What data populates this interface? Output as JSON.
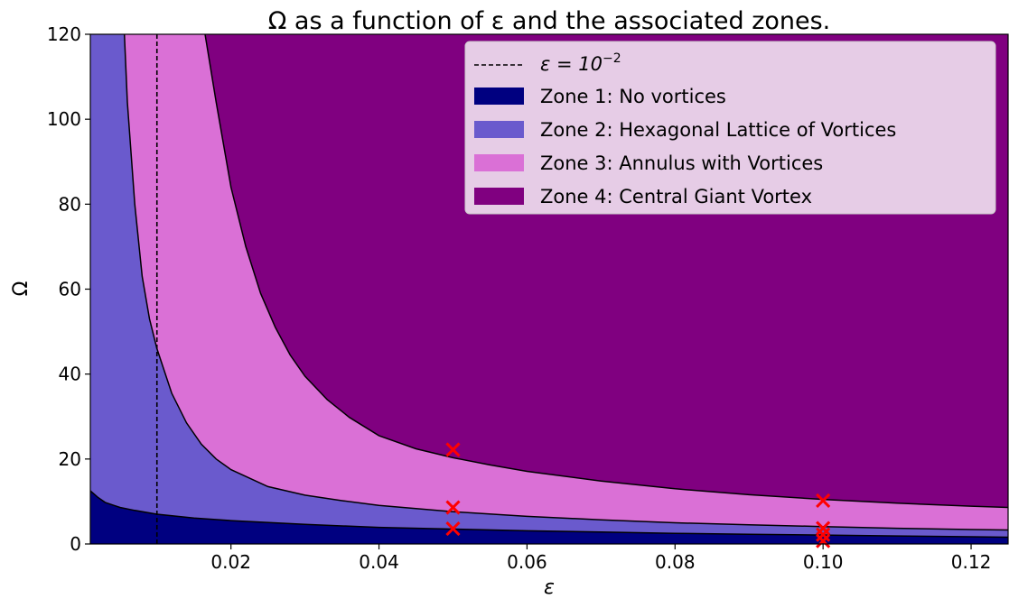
{
  "chart_data": {
    "type": "area",
    "title": "Ω as a function of ε and the associated zones.",
    "xlabel": "ε",
    "ylabel": "Ω",
    "xlim": [
      0.001,
      0.125
    ],
    "ylim": [
      0,
      120
    ],
    "x_ticks": [
      0.02,
      0.04,
      0.06,
      0.08,
      0.1,
      0.12
    ],
    "x_tick_labels": [
      "0.02",
      "0.04",
      "0.06",
      "0.08",
      "0.10",
      "0.12"
    ],
    "y_ticks": [
      0,
      20,
      40,
      60,
      80,
      100,
      120
    ],
    "y_tick_labels": [
      "0",
      "20",
      "40",
      "60",
      "80",
      "100",
      "120"
    ],
    "grid": false,
    "legend_position": "top-right",
    "vertical_line": {
      "x": 0.01,
      "label": "ε = 10",
      "label_exponent": "−2",
      "style": "dashed",
      "color": "#000000"
    },
    "zones": [
      {
        "name": "Zone 1: No vortices",
        "color": "#000080"
      },
      {
        "name": "Zone 2: Hexagonal Lattice of Vortices",
        "color": "#6a5acd"
      },
      {
        "name": "Zone 3: Annulus with Vortices",
        "color": "#da70d6"
      },
      {
        "name": "Zone 4: Central Giant Vortex",
        "color": "#800080"
      }
    ],
    "boundaries": [
      {
        "between": "Zone 1 / Zone 2",
        "x": [
          0.001,
          0.002,
          0.003,
          0.005,
          0.007,
          0.01,
          0.015,
          0.02,
          0.03,
          0.04,
          0.05,
          0.06,
          0.07,
          0.08,
          0.09,
          0.1,
          0.11,
          0.12,
          0.125
        ],
        "y": [
          12.5,
          11.0,
          9.8,
          8.6,
          7.9,
          7.0,
          6.1,
          5.5,
          4.6,
          3.9,
          3.5,
          3.1,
          2.8,
          2.5,
          2.3,
          2.1,
          1.9,
          1.7,
          1.6
        ]
      },
      {
        "between": "Zone 2 / Zone 3",
        "x": [
          0.0056,
          0.006,
          0.007,
          0.008,
          0.009,
          0.01,
          0.012,
          0.014,
          0.016,
          0.018,
          0.02,
          0.025,
          0.03,
          0.035,
          0.04,
          0.05,
          0.06,
          0.07,
          0.08,
          0.09,
          0.1,
          0.11,
          0.12,
          0.125
        ],
        "y": [
          120,
          104,
          80,
          63,
          53,
          46,
          35.5,
          28.5,
          23.5,
          20,
          17.5,
          13.5,
          11.5,
          10.2,
          9.1,
          7.6,
          6.5,
          5.7,
          5.0,
          4.5,
          4.1,
          3.7,
          3.4,
          3.3
        ]
      },
      {
        "between": "Zone 3 / Zone 4",
        "x": [
          0.0165,
          0.018,
          0.02,
          0.022,
          0.024,
          0.026,
          0.028,
          0.03,
          0.033,
          0.036,
          0.04,
          0.045,
          0.05,
          0.055,
          0.06,
          0.07,
          0.08,
          0.09,
          0.1,
          0.11,
          0.12,
          0.125
        ],
        "y": [
          120,
          104,
          84,
          70,
          59,
          51,
          44.5,
          39.5,
          34,
          29.8,
          25.5,
          22.4,
          20.3,
          18.6,
          17.1,
          14.8,
          13.0,
          11.6,
          10.5,
          9.6,
          8.9,
          8.6
        ]
      }
    ],
    "markers": {
      "symbol": "x",
      "color": "#ff0000",
      "points": [
        {
          "x": 0.05,
          "y": 22.2
        },
        {
          "x": 0.05,
          "y": 8.6
        },
        {
          "x": 0.05,
          "y": 3.6
        },
        {
          "x": 0.1,
          "y": 10.2
        },
        {
          "x": 0.1,
          "y": 3.7
        },
        {
          "x": 0.1,
          "y": 2.2
        },
        {
          "x": 0.1,
          "y": 0.7
        }
      ]
    }
  }
}
